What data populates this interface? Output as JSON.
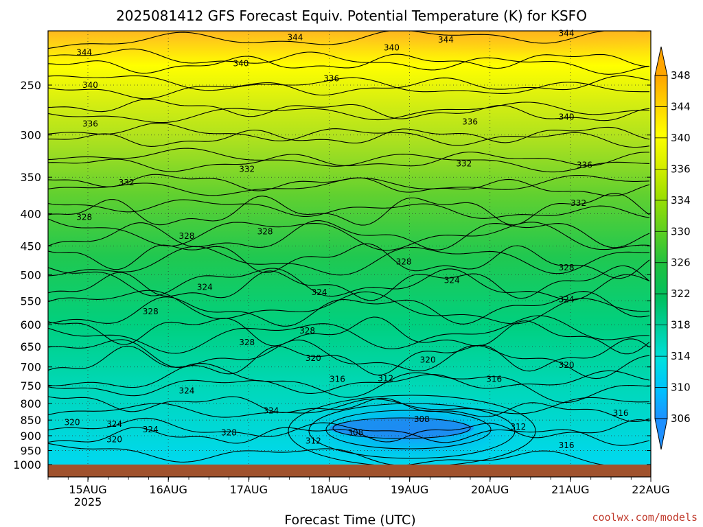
{
  "chart_data": {
    "type": "heatmap",
    "title": "2025081412 GFS Forecast Equiv. Potential Temperature (K) for KSFO",
    "xlabel": "Forecast Time (UTC)",
    "ylabel": "",
    "x_ticks": [
      "15AUG",
      "16AUG",
      "17AUG",
      "18AUG",
      "19AUG",
      "20AUG",
      "21AUG",
      "22AUG"
    ],
    "x_year_label": "2025",
    "y_ticks": [
      250,
      300,
      350,
      400,
      450,
      500,
      550,
      600,
      650,
      700,
      750,
      800,
      850,
      900,
      950,
      1000
    ],
    "y_axis": "pressure (inverted, log)",
    "colorbar": {
      "ticks": [
        306,
        310,
        314,
        318,
        322,
        326,
        330,
        334,
        336,
        340,
        344,
        348
      ],
      "colors": [
        "#1e90ff",
        "#00bfff",
        "#00e0e0",
        "#00d0a0",
        "#00c060",
        "#20c040",
        "#60d020",
        "#a0e000",
        "#d8ef00",
        "#ffff00",
        "#ffd000",
        "#ffa500"
      ]
    },
    "contour_labels": [
      {
        "value": "344",
        "t": 0.06,
        "p": 222
      },
      {
        "value": "344",
        "t": 0.41,
        "p": 210
      },
      {
        "value": "344",
        "t": 0.66,
        "p": 212
      },
      {
        "value": "344",
        "t": 0.86,
        "p": 207
      },
      {
        "value": "340",
        "t": 0.07,
        "p": 250
      },
      {
        "value": "340",
        "t": 0.32,
        "p": 231
      },
      {
        "value": "340",
        "t": 0.57,
        "p": 218
      },
      {
        "value": "340",
        "t": 0.86,
        "p": 281
      },
      {
        "value": "336",
        "t": 0.07,
        "p": 288
      },
      {
        "value": "336",
        "t": 0.47,
        "p": 244
      },
      {
        "value": "336",
        "t": 0.7,
        "p": 286
      },
      {
        "value": "336",
        "t": 0.89,
        "p": 335
      },
      {
        "value": "332",
        "t": 0.33,
        "p": 340
      },
      {
        "value": "332",
        "t": 0.13,
        "p": 357
      },
      {
        "value": "332",
        "t": 0.69,
        "p": 333
      },
      {
        "value": "332",
        "t": 0.88,
        "p": 385
      },
      {
        "value": "328",
        "t": 0.06,
        "p": 405
      },
      {
        "value": "328",
        "t": 0.23,
        "p": 434
      },
      {
        "value": "328",
        "t": 0.36,
        "p": 427
      },
      {
        "value": "328",
        "t": 0.59,
        "p": 477
      },
      {
        "value": "328",
        "t": 0.86,
        "p": 487
      },
      {
        "value": "328",
        "t": 0.17,
        "p": 572
      },
      {
        "value": "328",
        "t": 0.43,
        "p": 613
      },
      {
        "value": "328",
        "t": 0.33,
        "p": 640
      },
      {
        "value": "328",
        "t": 0.3,
        "p": 890
      },
      {
        "value": "324",
        "t": 0.26,
        "p": 523
      },
      {
        "value": "324",
        "t": 0.45,
        "p": 533
      },
      {
        "value": "324",
        "t": 0.67,
        "p": 510
      },
      {
        "value": "324",
        "t": 0.86,
        "p": 547
      },
      {
        "value": "324",
        "t": 0.23,
        "p": 764
      },
      {
        "value": "324",
        "t": 0.37,
        "p": 821
      },
      {
        "value": "324",
        "t": 0.11,
        "p": 863
      },
      {
        "value": "324",
        "t": 0.17,
        "p": 880
      },
      {
        "value": "320",
        "t": 0.04,
        "p": 857
      },
      {
        "value": "320",
        "t": 0.11,
        "p": 912
      },
      {
        "value": "320",
        "t": 0.44,
        "p": 678
      },
      {
        "value": "320",
        "t": 0.63,
        "p": 682
      },
      {
        "value": "320",
        "t": 0.86,
        "p": 695
      },
      {
        "value": "316",
        "t": 0.48,
        "p": 732
      },
      {
        "value": "316",
        "t": 0.74,
        "p": 732
      },
      {
        "value": "316",
        "t": 0.95,
        "p": 829
      },
      {
        "value": "316",
        "t": 0.86,
        "p": 932
      },
      {
        "value": "312",
        "t": 0.56,
        "p": 730
      },
      {
        "value": "312",
        "t": 0.44,
        "p": 917
      },
      {
        "value": "312",
        "t": 0.78,
        "p": 871
      },
      {
        "value": "308",
        "t": 0.62,
        "p": 847
      },
      {
        "value": "308",
        "t": 0.51,
        "p": 890
      }
    ]
  },
  "credit": "coolwx.com/models"
}
